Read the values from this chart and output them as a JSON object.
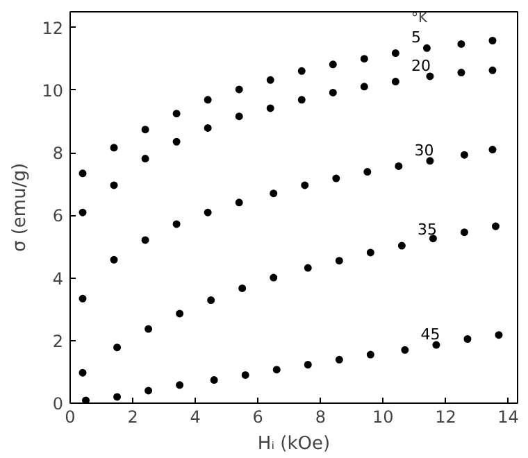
{
  "chart_data": {
    "type": "scatter",
    "xlabel": "Hᵢ (kOe)",
    "ylabel": "σ (emu/g)",
    "legend_title": "°K",
    "marker": "circle",
    "grid": false,
    "xlim": [
      0,
      14.3
    ],
    "ylim": [
      0,
      12.5
    ],
    "xticks": [
      0,
      2,
      4,
      6,
      8,
      10,
      12,
      14
    ],
    "yticks": [
      0,
      2,
      4,
      6,
      8,
      10,
      12
    ],
    "series": [
      {
        "name": "5",
        "color": "#000000",
        "x": [
          0.4,
          1.4,
          2.4,
          3.4,
          4.4,
          5.4,
          6.4,
          7.4,
          8.4,
          9.4,
          10.4,
          11.4,
          12.5,
          13.5
        ],
        "values": [
          7.34,
          8.16,
          8.74,
          9.25,
          9.69,
          10.02,
          10.32,
          10.61,
          10.82,
          11.0,
          11.18,
          11.34,
          11.47,
          11.58
        ]
      },
      {
        "name": "20",
        "color": "#000000",
        "x": [
          0.4,
          1.4,
          2.4,
          3.4,
          4.4,
          5.4,
          6.4,
          7.4,
          8.4,
          9.4,
          10.4,
          11.5,
          12.5,
          13.5
        ],
        "values": [
          6.09,
          6.96,
          7.81,
          8.35,
          8.79,
          9.16,
          9.42,
          9.69,
          9.92,
          10.11,
          10.27,
          10.44,
          10.56,
          10.63
        ]
      },
      {
        "name": "30",
        "color": "#000000",
        "x": [
          0.4,
          1.4,
          2.4,
          3.4,
          4.4,
          5.4,
          6.5,
          7.5,
          8.5,
          9.5,
          10.5,
          11.5,
          12.6,
          13.5
        ],
        "values": [
          3.34,
          4.58,
          5.21,
          5.72,
          6.09,
          6.41,
          6.7,
          6.96,
          7.18,
          7.39,
          7.57,
          7.74,
          7.93,
          8.1
        ]
      },
      {
        "name": "35",
        "color": "#000000",
        "x": [
          0.4,
          1.5,
          2.5,
          3.5,
          4.5,
          5.5,
          6.5,
          7.6,
          8.6,
          9.6,
          10.6,
          11.6,
          12.6,
          13.6
        ],
        "values": [
          0.97,
          1.78,
          2.37,
          2.86,
          3.29,
          3.67,
          4.01,
          4.32,
          4.55,
          4.81,
          5.03,
          5.26,
          5.46,
          5.65
        ]
      },
      {
        "name": "45",
        "color": "#000000",
        "x": [
          0.5,
          1.5,
          2.5,
          3.5,
          4.6,
          5.6,
          6.6,
          7.6,
          8.6,
          9.6,
          10.7,
          11.7,
          12.7,
          13.7
        ],
        "values": [
          0.09,
          0.2,
          0.4,
          0.58,
          0.74,
          0.9,
          1.07,
          1.23,
          1.39,
          1.55,
          1.7,
          1.86,
          2.05,
          2.18
        ]
      }
    ]
  }
}
